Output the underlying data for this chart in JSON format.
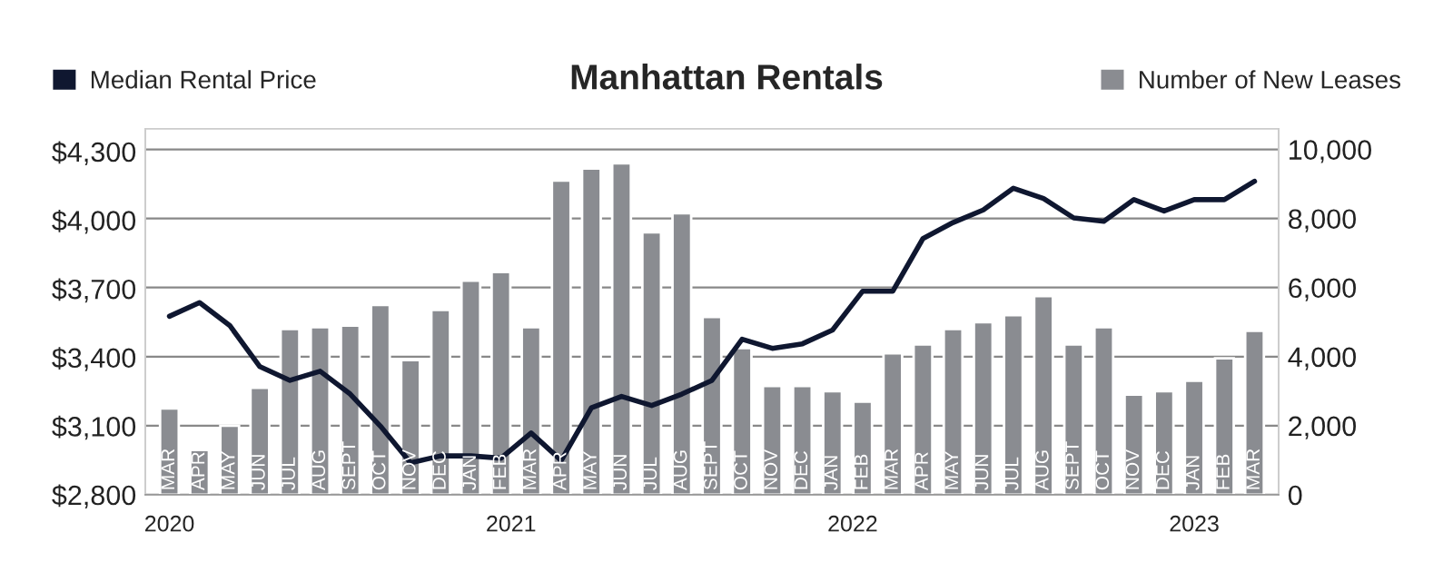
{
  "chart_data": {
    "type": "bar",
    "title": "Manhattan Rentals",
    "categories": [
      "MAR",
      "APR",
      "MAY",
      "JUN",
      "JUL",
      "AUG",
      "SEPT",
      "OCT",
      "NOV",
      "DEC",
      "JAN",
      "FEB",
      "MAR",
      "APR",
      "MAY",
      "JUN",
      "JUL",
      "AUG",
      "SEPT",
      "OCT",
      "NOV",
      "DEC",
      "JAN",
      "FEB",
      "MAR",
      "APR",
      "MAY",
      "JUN",
      "JUL",
      "AUG",
      "SEPT",
      "OCT",
      "NOV",
      "DEC",
      "JAN",
      "FEB",
      "MAR"
    ],
    "series": [
      {
        "name": "Number of New Leases",
        "axis": "y2",
        "color": "#8a8c91",
        "values": [
          2500,
          1300,
          2000,
          3100,
          4800,
          4850,
          4900,
          5500,
          3900,
          5350,
          6200,
          6450,
          4850,
          9100,
          9450,
          9600,
          7600,
          8150,
          5150,
          4250,
          3150,
          3150,
          3000,
          2700,
          4100,
          4350,
          4800,
          5000,
          5200,
          5750,
          4350,
          4850,
          2900,
          3000,
          3300,
          3950,
          4750
        ]
      },
      {
        "name": "Median Rental Price",
        "type": "line",
        "color": "#0f1730",
        "values": [
          3580,
          3640,
          3540,
          3360,
          3300,
          3340,
          3240,
          3100,
          2940,
          2970,
          2970,
          2960,
          3070,
          2950,
          3180,
          3230,
          3190,
          3240,
          3300,
          3480,
          3440,
          3460,
          3520,
          3690,
          3690,
          3920,
          3990,
          4045,
          4140,
          4095,
          4010,
          3995,
          4090,
          4040,
          4090,
          4090,
          4170
        ]
      }
    ],
    "ylim": [
      2800,
      4400
    ],
    "yticks": [
      {
        "value": 2800,
        "label": "$2,800"
      },
      {
        "value": 3100,
        "label": "$3,100"
      },
      {
        "value": 3400,
        "label": "$3,400"
      },
      {
        "value": 3700,
        "label": "$3,700"
      },
      {
        "value": 4000,
        "label": "$4,000"
      },
      {
        "value": 4300,
        "label": "$4,300"
      }
    ],
    "y2lim": [
      0,
      10600
    ],
    "y2ticks": [
      {
        "value": 0,
        "label": "0"
      },
      {
        "value": 2000,
        "label": "2,000"
      },
      {
        "value": 4000,
        "label": "4,000"
      },
      {
        "value": 6000,
        "label": "6,000"
      },
      {
        "value": 8000,
        "label": "8,000"
      },
      {
        "value": 10000,
        "label": "10,000"
      }
    ],
    "annotations": [
      "2020",
      "2021",
      "2022",
      "2023"
    ],
    "grid": "y",
    "legend": "top",
    "line_style": "solid",
    "marker": "none"
  }
}
